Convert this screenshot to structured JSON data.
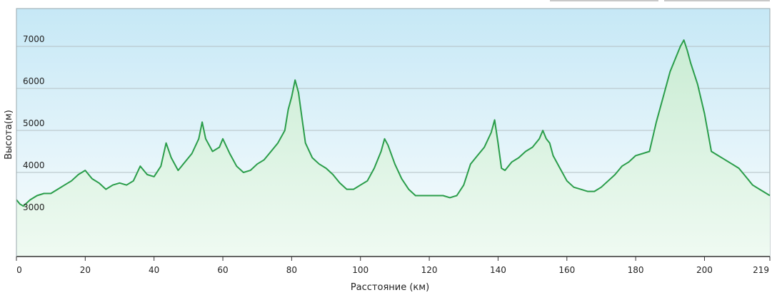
{
  "chart_data": {
    "type": "area",
    "title": "",
    "xlabel": "Расстояние  (км)",
    "ylabel": "Высота(м)",
    "xlim": [
      0,
      219
    ],
    "ylim": [
      2000,
      7900
    ],
    "x_ticks": [
      0,
      20,
      40,
      60,
      80,
      100,
      120,
      140,
      160,
      180,
      200,
      219
    ],
    "y_ticks": [
      3000,
      4000,
      5000,
      6000,
      7000
    ],
    "grid": true,
    "colors": {
      "line": "#2a9d4a",
      "fill_top": "#c9ecd3",
      "fill_bottom": "#effaf2",
      "bg_top": "#c6e8f6",
      "bg_bottom": "#fafdfd",
      "grid": "#b4c0c4"
    },
    "series": [
      {
        "x": [
          0,
          1,
          2,
          4,
          6,
          8,
          10,
          12,
          14,
          16,
          18,
          20,
          22,
          24,
          26,
          28,
          30,
          32,
          34,
          36,
          38,
          40,
          42,
          43.5,
          45,
          47,
          49,
          51,
          53,
          54,
          55,
          57,
          59,
          60,
          62,
          64,
          66,
          68,
          70,
          72,
          74,
          76,
          78,
          79,
          80,
          81,
          82,
          83,
          84,
          86,
          88,
          90,
          92,
          94,
          96,
          98,
          100,
          102,
          104,
          106,
          107,
          108,
          110,
          112,
          114,
          116,
          118,
          120,
          122,
          124,
          126,
          128,
          130,
          132,
          134,
          136,
          138,
          139,
          140,
          141,
          142,
          144,
          146,
          148,
          150,
          152,
          153,
          154,
          155,
          156,
          158,
          160,
          162,
          164,
          166,
          168,
          170,
          172,
          174,
          176,
          178,
          180,
          182,
          184,
          186,
          188,
          190,
          192,
          193,
          194,
          195,
          196,
          198,
          200,
          202,
          204,
          206,
          208,
          210,
          212,
          214,
          216,
          218,
          219
        ],
        "y": [
          3350,
          3250,
          3200,
          3350,
          3450,
          3500,
          3500,
          3600,
          3700,
          3800,
          3950,
          4050,
          3850,
          3750,
          3600,
          3700,
          3750,
          3700,
          3800,
          4150,
          3950,
          3900,
          4150,
          4700,
          4350,
          4050,
          4250,
          4450,
          4800,
          5200,
          4800,
          4500,
          4600,
          4800,
          4450,
          4150,
          4000,
          4050,
          4200,
          4300,
          4500,
          4700,
          5000,
          5500,
          5800,
          6200,
          5900,
          5300,
          4700,
          4350,
          4200,
          4100,
          3950,
          3750,
          3600,
          3600,
          3700,
          3800,
          4100,
          4500,
          4800,
          4650,
          4200,
          3850,
          3600,
          3450,
          3450,
          3450,
          3450,
          3450,
          3400,
          3450,
          3700,
          4200,
          4400,
          4600,
          4950,
          5250,
          4700,
          4100,
          4050,
          4250,
          4350,
          4500,
          4600,
          4800,
          5000,
          4800,
          4700,
          4400,
          4100,
          3800,
          3650,
          3600,
          3550,
          3550,
          3650,
          3800,
          3950,
          4150,
          4250,
          4400,
          4450,
          4500,
          5200,
          5800,
          6400,
          6800,
          7000,
          7150,
          6900,
          6600,
          6100,
          5400,
          4500,
          4400,
          4300,
          4200,
          4100,
          3900,
          3700,
          3600,
          3500,
          3450
        ]
      }
    ]
  }
}
